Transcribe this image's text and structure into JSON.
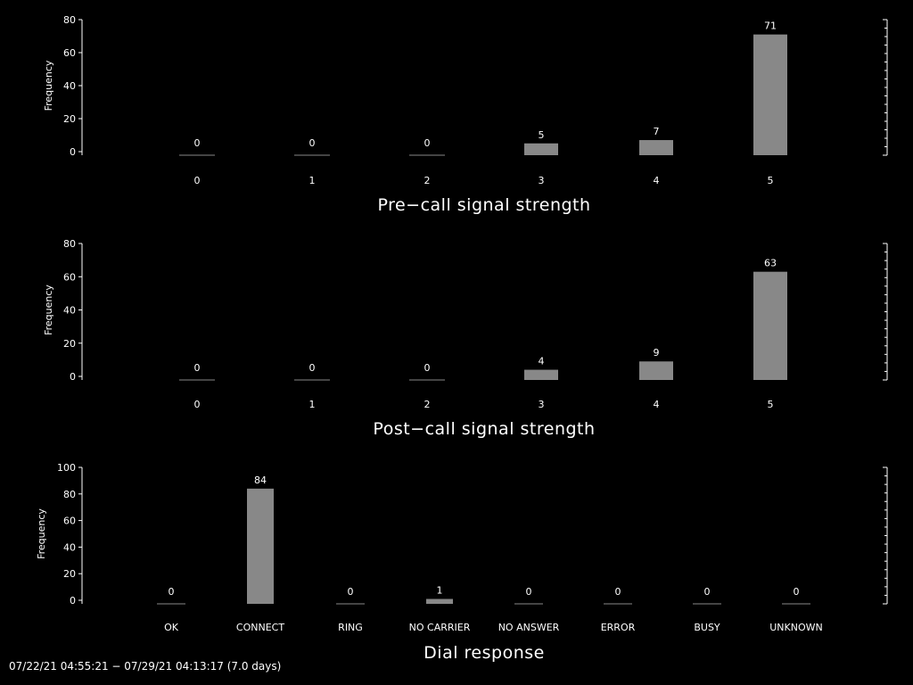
{
  "chart_data": [
    {
      "type": "bar",
      "categories": [
        "0",
        "1",
        "2",
        "3",
        "4",
        "5"
      ],
      "values": [
        0,
        0,
        0,
        5,
        7,
        71
      ],
      "xlabel": "Pre−call signal strength",
      "ylabel": "Frequency",
      "ylim": [
        0,
        80
      ],
      "yticks": [
        0,
        20,
        40,
        60,
        80
      ]
    },
    {
      "type": "bar",
      "categories": [
        "0",
        "1",
        "2",
        "3",
        "4",
        "5"
      ],
      "values": [
        0,
        0,
        0,
        4,
        9,
        63
      ],
      "xlabel": "Post−call signal strength",
      "ylabel": "Frequency",
      "ylim": [
        0,
        80
      ],
      "yticks": [
        0,
        20,
        40,
        60,
        80
      ]
    },
    {
      "type": "bar",
      "categories": [
        "OK",
        "CONNECT",
        "RING",
        "NO CARRIER",
        "NO ANSWER",
        "ERROR",
        "BUSY",
        "UNKNOWN"
      ],
      "values": [
        0,
        84,
        0,
        1,
        0,
        0,
        0,
        0
      ],
      "xlabel": "Dial response",
      "ylabel": "Frequency",
      "ylim": [
        0,
        100
      ],
      "yticks": [
        0,
        20,
        40,
        60,
        80,
        100
      ]
    }
  ],
  "footer": "07/22/21 04:55:21 − 07/29/21 04:13:17 (7.0 days)",
  "colors": {
    "bar": "#888888",
    "axis": "#ffffff",
    "background": "#000000"
  }
}
